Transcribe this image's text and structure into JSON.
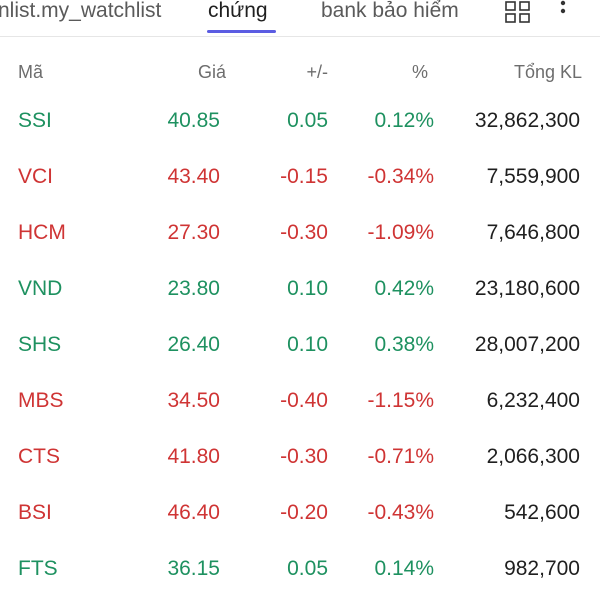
{
  "tabs": [
    {
      "label": "nlist.my_watchlist",
      "active": false
    },
    {
      "label": "chứng",
      "active": true
    },
    {
      "label": "bank bảo hiểm",
      "active": false
    }
  ],
  "toolbar": {
    "grid_icon": "grid-view-icon",
    "more_icon": "more-vertical-icon"
  },
  "colors": {
    "up": "#1e9160",
    "down": "#cf3434",
    "accent": "#5b5ce2"
  },
  "table": {
    "headers": {
      "symbol": "Mã",
      "price": "Giá",
      "change": "+/-",
      "percent": "%",
      "volume": "Tổng KL"
    },
    "rows": [
      {
        "symbol": "SSI",
        "price": "40.85",
        "change": "0.05",
        "percent": "0.12%",
        "volume": "32,862,300",
        "trend": "up"
      },
      {
        "symbol": "VCI",
        "price": "43.40",
        "change": "-0.15",
        "percent": "-0.34%",
        "volume": "7,559,900",
        "trend": "down"
      },
      {
        "symbol": "HCM",
        "price": "27.30",
        "change": "-0.30",
        "percent": "-1.09%",
        "volume": "7,646,800",
        "trend": "down"
      },
      {
        "symbol": "VND",
        "price": "23.80",
        "change": "0.10",
        "percent": "0.42%",
        "volume": "23,180,600",
        "trend": "up"
      },
      {
        "symbol": "SHS",
        "price": "26.40",
        "change": "0.10",
        "percent": "0.38%",
        "volume": "28,007,200",
        "trend": "up"
      },
      {
        "symbol": "MBS",
        "price": "34.50",
        "change": "-0.40",
        "percent": "-1.15%",
        "volume": "6,232,400",
        "trend": "down"
      },
      {
        "symbol": "CTS",
        "price": "41.80",
        "change": "-0.30",
        "percent": "-0.71%",
        "volume": "2,066,300",
        "trend": "down"
      },
      {
        "symbol": "BSI",
        "price": "46.40",
        "change": "-0.20",
        "percent": "-0.43%",
        "volume": "542,600",
        "trend": "down"
      },
      {
        "symbol": "FTS",
        "price": "36.15",
        "change": "0.05",
        "percent": "0.14%",
        "volume": "982,700",
        "trend": "up"
      }
    ]
  }
}
